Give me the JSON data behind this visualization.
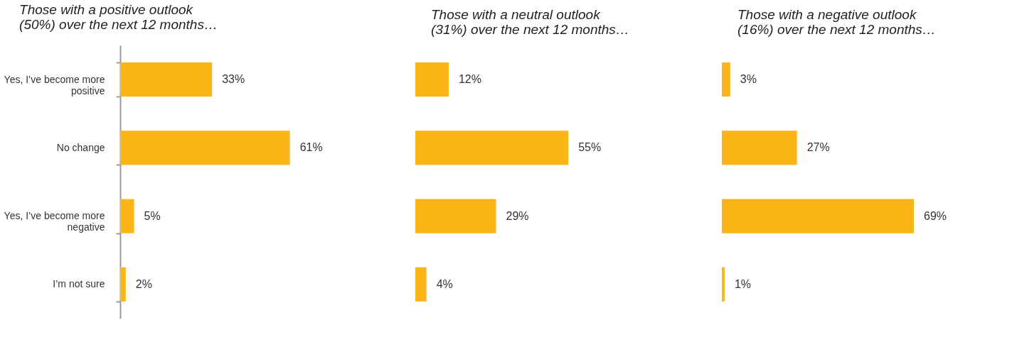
{
  "chart_data": [
    {
      "type": "bar",
      "orientation": "horizontal",
      "title": "Those with a positive outlook (50%) over the next 12 months…",
      "categories": [
        "Yes, I’ve become more positive",
        "No change",
        "Yes, I’ve become more negative",
        "I’m not sure"
      ],
      "values": [
        33,
        61,
        5,
        2
      ],
      "value_labels": [
        "33%",
        "61%",
        "5%",
        "2%"
      ],
      "color": "#fbb516",
      "tick_labels": "y",
      "grid": false
    },
    {
      "type": "bar",
      "orientation": "horizontal",
      "title": "Those with a neutral outlook (31%) over the next 12 months…",
      "categories": [
        null,
        null,
        null,
        null
      ],
      "values": [
        12,
        55,
        29,
        4
      ],
      "value_labels": [
        "12%",
        "55%",
        "29%",
        "4%"
      ],
      "color": "#fbb516",
      "tick_labels": false,
      "grid": false
    },
    {
      "type": "bar",
      "orientation": "horizontal",
      "title": "Those with a negative outlook (16%) over the next 12 months…",
      "categories": [
        null,
        null,
        null,
        null
      ],
      "values": [
        3,
        27,
        69,
        1
      ],
      "value_labels": [
        "3%",
        "27%",
        "69%",
        "1%"
      ],
      "color": "#fbb516",
      "tick_labels": false,
      "grid": false
    }
  ]
}
